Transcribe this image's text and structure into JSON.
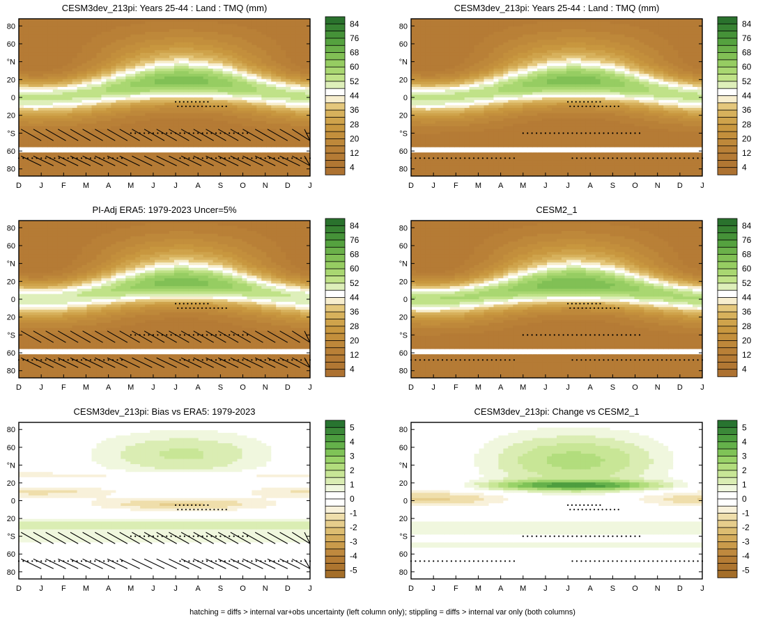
{
  "footnote": "hatching = diffs > internal var+obs uncertainty (left column only); stippling = diffs > internal var only (both columns)",
  "colors": {
    "brown_dark": "#b37a33",
    "brown_mid": "#c99b48",
    "tan": "#e0c277",
    "pale": "#f1e4b3",
    "white": "#ffffff",
    "green_pale": "#dcefb3",
    "green_light": "#b5df78",
    "green_mid": "#7dbf4f",
    "green_dark": "#2f7a2f"
  },
  "chart_data": [
    {
      "type": "heatmap",
      "title": "CESM3dev_213pi: Years 25-44 : Land : TMQ (mm)",
      "x_ticks": [
        "D",
        "J",
        "F",
        "M",
        "A",
        "M",
        "J",
        "J",
        "A",
        "S",
        "O",
        "N",
        "D",
        "J"
      ],
      "y_ticks": [
        "80",
        "60",
        "°N",
        "20",
        "0",
        "20",
        "°S",
        "60",
        "80"
      ],
      "colorbar": {
        "labels": [
          "84",
          "76",
          "68",
          "60",
          "52",
          "44",
          "36",
          "28",
          "20",
          "12",
          "4"
        ],
        "levels_min": 0,
        "levels_max": 88,
        "step": 4
      },
      "field": "tmq",
      "overlays": [
        "hatching",
        "stippling"
      ]
    },
    {
      "type": "heatmap",
      "title": "CESM3dev_213pi: Years 25-44 : Land : TMQ (mm)",
      "x_ticks": [
        "D",
        "J",
        "F",
        "M",
        "A",
        "M",
        "J",
        "J",
        "A",
        "S",
        "O",
        "N",
        "D",
        "J"
      ],
      "y_ticks": [
        "80",
        "60",
        "°N",
        "20",
        "0",
        "20",
        "°S",
        "60",
        "80"
      ],
      "colorbar": {
        "labels": [
          "84",
          "76",
          "68",
          "60",
          "52",
          "44",
          "36",
          "28",
          "20",
          "12",
          "4"
        ],
        "levels_min": 0,
        "levels_max": 88,
        "step": 4
      },
      "field": "tmq",
      "overlays": [
        "stippling"
      ]
    },
    {
      "type": "heatmap",
      "title": "PI-Adj ERA5: 1979-2023 Uncer=5%",
      "x_ticks": [
        "D",
        "J",
        "F",
        "M",
        "A",
        "M",
        "J",
        "J",
        "A",
        "S",
        "O",
        "N",
        "D",
        "J"
      ],
      "y_ticks": [
        "80",
        "60",
        "°N",
        "20",
        "0",
        "20",
        "°S",
        "60",
        "80"
      ],
      "colorbar": {
        "labels": [
          "84",
          "76",
          "68",
          "60",
          "52",
          "44",
          "36",
          "28",
          "20",
          "12",
          "4"
        ],
        "levels_min": 0,
        "levels_max": 88,
        "step": 4
      },
      "field": "tmq",
      "overlays": [
        "hatching",
        "stippling"
      ]
    },
    {
      "type": "heatmap",
      "title": "CESM2_1",
      "x_ticks": [
        "D",
        "J",
        "F",
        "M",
        "A",
        "M",
        "J",
        "J",
        "A",
        "S",
        "O",
        "N",
        "D",
        "J"
      ],
      "y_ticks": [
        "80",
        "60",
        "°N",
        "20",
        "0",
        "20",
        "°S",
        "60",
        "80"
      ],
      "colorbar": {
        "labels": [
          "84",
          "76",
          "68",
          "60",
          "52",
          "44",
          "36",
          "28",
          "20",
          "12",
          "4"
        ],
        "levels_min": 0,
        "levels_max": 88,
        "step": 4
      },
      "field": "tmq",
      "overlays": [
        "stippling"
      ]
    },
    {
      "type": "heatmap",
      "title": "CESM3dev_213pi: Bias vs ERA5: 1979-2023",
      "x_ticks": [
        "D",
        "J",
        "F",
        "M",
        "A",
        "M",
        "J",
        "J",
        "A",
        "S",
        "O",
        "N",
        "D",
        "J"
      ],
      "y_ticks": [
        "80",
        "60",
        "°N",
        "20",
        "0",
        "20",
        "°S",
        "60",
        "80"
      ],
      "colorbar": {
        "labels": [
          "5",
          "4",
          "3",
          "2",
          "1",
          "0",
          "-1",
          "-2",
          "-3",
          "-4",
          "-5"
        ],
        "levels_min": -5.5,
        "levels_max": 5.5,
        "step": 0.5
      },
      "field": "bias",
      "overlays": [
        "hatching",
        "stippling"
      ]
    },
    {
      "type": "heatmap",
      "title": "CESM3dev_213pi: Change vs CESM2_1",
      "x_ticks": [
        "D",
        "J",
        "F",
        "M",
        "A",
        "M",
        "J",
        "J",
        "A",
        "S",
        "O",
        "N",
        "D",
        "J"
      ],
      "y_ticks": [
        "80",
        "60",
        "°N",
        "20",
        "0",
        "20",
        "°S",
        "60",
        "80"
      ],
      "colorbar": {
        "labels": [
          "5",
          "4",
          "3",
          "2",
          "1",
          "0",
          "-1",
          "-2",
          "-3",
          "-4",
          "-5"
        ],
        "levels_min": -5.5,
        "levels_max": 5.5,
        "step": 0.5
      },
      "field": "change",
      "overlays": [
        "stippling"
      ]
    }
  ]
}
